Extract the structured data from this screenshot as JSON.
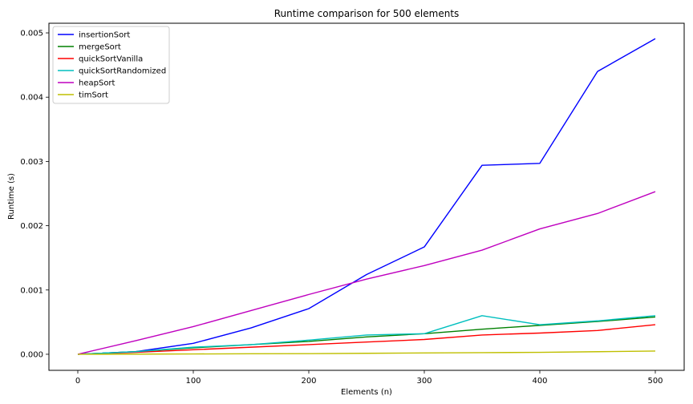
{
  "chart_data": {
    "type": "line",
    "title": "Runtime comparison for 500 elements",
    "xlabel": "Elements (n)",
    "ylabel": "Runtime (s)",
    "x": [
      0,
      50,
      100,
      150,
      200,
      250,
      300,
      350,
      400,
      450,
      500
    ],
    "xlim": [
      -25,
      525
    ],
    "ylim": [
      -0.00025,
      0.00515
    ],
    "xticks": [
      0,
      100,
      200,
      300,
      400,
      500
    ],
    "xtick_labels": [
      "0",
      "100",
      "200",
      "300",
      "400",
      "500"
    ],
    "yticks": [
      0,
      0.001,
      0.002,
      0.003,
      0.004,
      0.005
    ],
    "ytick_labels": [
      "0.000",
      "0.001",
      "0.002",
      "0.003",
      "0.004",
      "0.005"
    ],
    "grid": false,
    "legend_position": "top-left",
    "series": [
      {
        "name": "insertionSort",
        "color": "#0000ff",
        "values": [
          0.0,
          4e-05,
          0.00017,
          0.00041,
          0.00071,
          0.00124,
          0.00167,
          0.00294,
          0.00297,
          0.0044,
          0.00491
        ]
      },
      {
        "name": "mergeSort",
        "color": "#008000",
        "values": [
          0.0,
          4e-05,
          0.0001,
          0.00015,
          0.0002,
          0.00027,
          0.00032,
          0.00039,
          0.00045,
          0.00051,
          0.00058
        ]
      },
      {
        "name": "quickSortVanilla",
        "color": "#ff0000",
        "values": [
          0.0,
          3e-05,
          7e-05,
          0.00011,
          0.00015,
          0.00019,
          0.00023,
          0.0003,
          0.00033,
          0.00037,
          0.00046
        ]
      },
      {
        "name": "quickSortRandomized",
        "color": "#00bfbf",
        "values": [
          0.0,
          4e-05,
          0.00011,
          0.00015,
          0.00022,
          0.0003,
          0.00032,
          0.0006,
          0.00046,
          0.00052,
          0.0006
        ]
      },
      {
        "name": "heapSort",
        "color": "#bf00bf",
        "values": [
          0.0,
          0.00021,
          0.00043,
          0.00068,
          0.00093,
          0.00117,
          0.00138,
          0.00162,
          0.00195,
          0.00219,
          0.00253
        ]
      },
      {
        "name": "timSort",
        "color": "#bfbf00",
        "values": [
          0.0,
          2.5e-06,
          5e-06,
          7.5e-06,
          1e-05,
          1.5e-05,
          2e-05,
          2.5e-05,
          3e-05,
          4e-05,
          5e-05
        ]
      }
    ]
  }
}
